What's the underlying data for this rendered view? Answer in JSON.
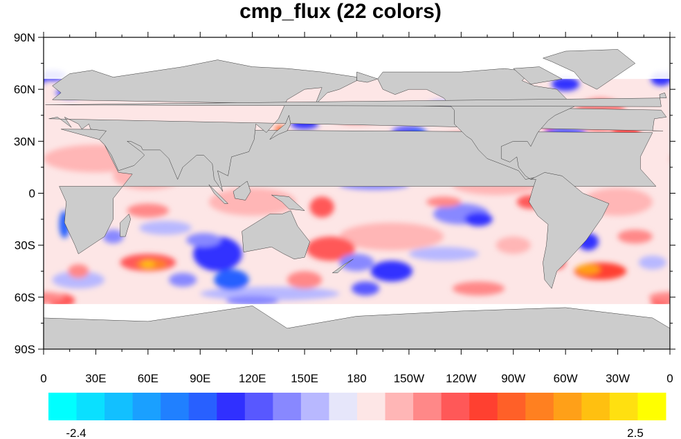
{
  "title": "cmp_flux (22 colors)",
  "map": {
    "lat_labels": [
      "90N",
      "60N",
      "30N",
      "0",
      "30S",
      "60S",
      "90S"
    ],
    "lon_labels": [
      "0",
      "30E",
      "60E",
      "90E",
      "120E",
      "150E",
      "180",
      "150W",
      "120W",
      "90W",
      "60W",
      "30W",
      "0"
    ],
    "land_color": "#cccccc",
    "missing_color": "#ffffff"
  },
  "colorbar": {
    "min_label": "-2.4",
    "max_label": "2.5",
    "colors": [
      "#00ffff",
      "#0ae0ff",
      "#12c0ff",
      "#1aa0ff",
      "#2080ff",
      "#2860ff",
      "#3030ff",
      "#5858ff",
      "#8888ff",
      "#b8b8ff",
      "#e6e6fa",
      "#fde6e6",
      "#ffb6b6",
      "#ff8888",
      "#ff5858",
      "#ff4030",
      "#ff6028",
      "#ff8020",
      "#ffa018",
      "#ffc010",
      "#ffe010",
      "#ffff00"
    ]
  }
}
